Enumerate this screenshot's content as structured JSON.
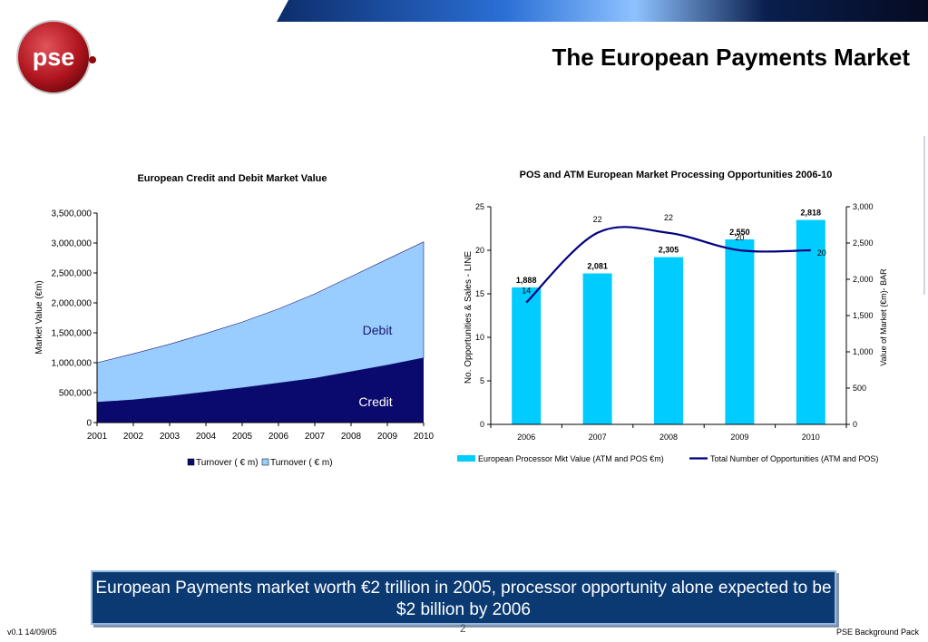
{
  "slide": {
    "title": "The European Payments Market",
    "logo_text": "pse",
    "callout": "European Payments market worth €2 trillion in 2005, processor opportunity alone expected to be $2 billion by 2006",
    "footer_left": "v0.1  14/09/05",
    "footer_right": "PSE Background Pack",
    "page_number": "2"
  },
  "colors": {
    "credit": "#0a0a6e",
    "debit": "#99ccff",
    "bar": "#00ccff",
    "line": "#000080",
    "callout_bg": "#0b3a73"
  },
  "chart_data": [
    {
      "type": "area",
      "title": "European Credit and Debit Market Value",
      "xlabel": "",
      "ylabel": "Market Value (€m)",
      "x": [
        "2001",
        "2002",
        "2003",
        "2004",
        "2005",
        "2006",
        "2007",
        "2008",
        "2009",
        "2010"
      ],
      "ylim": [
        0,
        3500000
      ],
      "yticks": [
        0,
        500000,
        1000000,
        1500000,
        2000000,
        2500000,
        3000000,
        3500000
      ],
      "ytick_labels": [
        "0",
        "500,000",
        "1,000,000",
        "1,500,000",
        "2,000,000",
        "2,500,000",
        "3,000,000",
        "3,500,000"
      ],
      "series": [
        {
          "name": "Turnover ( € m)",
          "label": "Credit",
          "values": [
            340000,
            380000,
            440000,
            510000,
            580000,
            660000,
            740000,
            850000,
            960000,
            1080000
          ]
        },
        {
          "name": "Turnover ( € m)",
          "label": "Debit",
          "values": [
            660000,
            770000,
            870000,
            980000,
            1100000,
            1240000,
            1410000,
            1590000,
            1770000,
            1940000
          ]
        }
      ],
      "stacked": true,
      "legend": "bottom"
    },
    {
      "type": "bar",
      "title": "POS and ATM European Market Processing Opportunities 2006-10",
      "categories": [
        "2006",
        "2007",
        "2008",
        "2009",
        "2010"
      ],
      "ylabel_left": "No. Opportunities & Sales - LINE",
      "ylabel_right": "Value of Market  (€m)- BAR",
      "ylim_left": [
        0,
        25
      ],
      "yticks_left": [
        0,
        5,
        10,
        15,
        20,
        25
      ],
      "ylim_right": [
        0,
        3000
      ],
      "yticks_right": [
        0,
        500,
        1000,
        1500,
        2000,
        2500,
        3000
      ],
      "ytick_labels_right": [
        "0",
        "500",
        "1,000",
        "1,500",
        "2,000",
        "2,500",
        "3,000"
      ],
      "series": [
        {
          "name": "European Processor Mkt Value (ATM and POS €m)",
          "kind": "bar",
          "axis": "right",
          "values": [
            1888,
            2081,
            2305,
            2550,
            2818
          ],
          "labels": [
            "1,888",
            "2,081",
            "2,305",
            "2,550",
            "2,818"
          ]
        },
        {
          "name": "Total Number of Opportunities (ATM and POS)",
          "kind": "line",
          "axis": "left",
          "values": [
            14,
            22,
            22,
            20,
            20
          ],
          "labels": [
            "14",
            "22",
            "22",
            "20",
            "20"
          ]
        }
      ],
      "legend": "bottom"
    }
  ]
}
